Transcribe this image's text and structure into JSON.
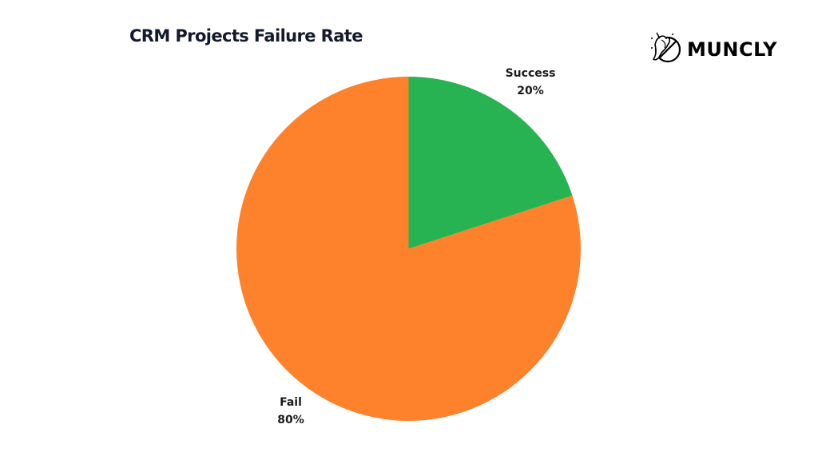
{
  "header": {
    "title": "CRM Projects Failure Rate",
    "brand": "MUNCLY"
  },
  "chart_data": {
    "type": "pie",
    "title": "CRM Projects Failure Rate",
    "categories": [
      "Success",
      "Fail"
    ],
    "values": [
      20,
      80
    ],
    "labels": [
      {
        "name": "Success",
        "value": "20%"
      },
      {
        "name": "Fail",
        "value": "80%"
      }
    ],
    "colors": [
      "#27b351",
      "#fe812c"
    ],
    "start_angle_deg": 0,
    "direction": "clockwise",
    "legend": "none"
  },
  "colors": {
    "success": "#27b351",
    "fail": "#fe812c",
    "title": "#141a2e"
  }
}
